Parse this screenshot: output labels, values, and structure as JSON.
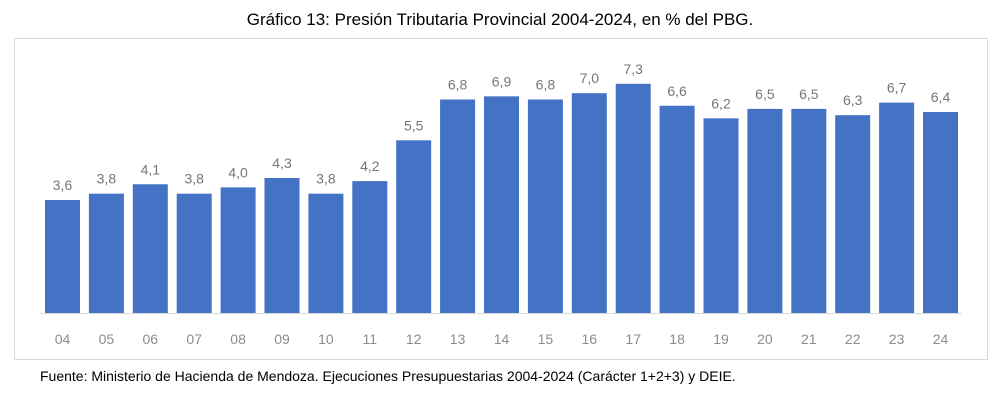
{
  "chart_data": {
    "type": "bar",
    "title": "Gráfico 13: Presión Tributaria Provincial 2004-2024, en % del PBG.",
    "categories": [
      "04",
      "05",
      "06",
      "07",
      "08",
      "09",
      "10",
      "11",
      "12",
      "13",
      "14",
      "15",
      "16",
      "17",
      "18",
      "19",
      "20",
      "21",
      "22",
      "23",
      "24"
    ],
    "values": [
      3.6,
      3.8,
      4.1,
      3.8,
      4.0,
      4.3,
      3.8,
      4.2,
      5.5,
      6.8,
      6.9,
      6.8,
      7.0,
      7.3,
      6.6,
      6.2,
      6.5,
      6.5,
      6.3,
      6.7,
      6.4
    ],
    "data_labels": [
      "3,6",
      "3,8",
      "4,1",
      "3,8",
      "4,0",
      "4,3",
      "3,8",
      "4,2",
      "5,5",
      "6,8",
      "6,9",
      "6,8",
      "7,0",
      "7,3",
      "6,6",
      "6,2",
      "6,5",
      "6,5",
      "6,3",
      "6,7",
      "6,4"
    ],
    "xlabel": "",
    "ylabel": "",
    "ylim": [
      0,
      8
    ],
    "grid": false,
    "legend": "none",
    "bar_color": "#4472C4",
    "label_color": "#767676"
  },
  "source": "Fuente: Ministerio de Hacienda de Mendoza. Ejecuciones Presupuestarias 2004-2024 (Carácter 1+2+3) y DEIE."
}
